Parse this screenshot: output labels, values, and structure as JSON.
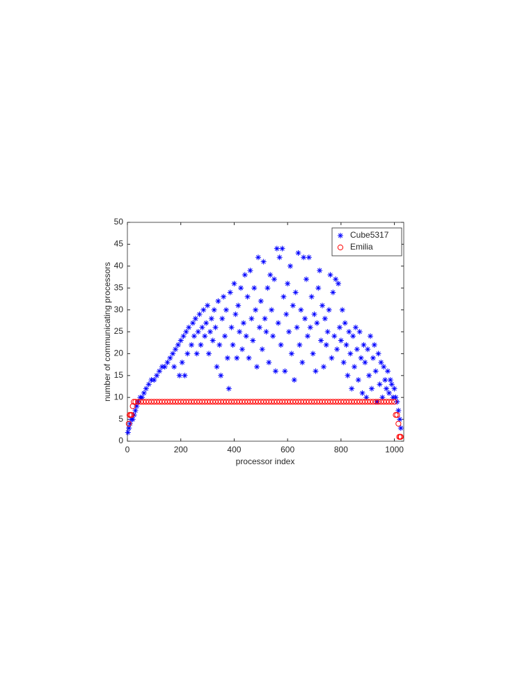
{
  "chart_data": {
    "type": "scatter",
    "xlabel": "processor index",
    "ylabel": "number of communicating processors",
    "xlim": [
      0,
      1035
    ],
    "ylim": [
      0,
      50
    ],
    "xticks": [
      0,
      200,
      400,
      600,
      800,
      1000
    ],
    "yticks": [
      0,
      5,
      10,
      15,
      20,
      25,
      30,
      35,
      40,
      45,
      50
    ],
    "legend": "upper right",
    "series": [
      {
        "name": "Cube5317",
        "color": "#0000ff",
        "marker": "star",
        "x": [
          2,
          6,
          10,
          15,
          20,
          25,
          30,
          35,
          40,
          48,
          55,
          62,
          70,
          80,
          90,
          100,
          110,
          120,
          130,
          140,
          150,
          160,
          170,
          175,
          180,
          190,
          195,
          200,
          205,
          210,
          215,
          220,
          225,
          230,
          240,
          245,
          250,
          255,
          260,
          265,
          270,
          275,
          280,
          285,
          290,
          295,
          300,
          305,
          310,
          315,
          320,
          325,
          330,
          335,
          340,
          345,
          350,
          355,
          360,
          365,
          370,
          375,
          380,
          385,
          390,
          395,
          400,
          405,
          410,
          415,
          420,
          425,
          430,
          435,
          440,
          445,
          450,
          455,
          460,
          465,
          470,
          475,
          480,
          485,
          490,
          495,
          500,
          505,
          510,
          515,
          520,
          525,
          530,
          535,
          540,
          545,
          550,
          555,
          560,
          565,
          570,
          575,
          580,
          585,
          590,
          595,
          600,
          605,
          610,
          615,
          620,
          625,
          630,
          635,
          640,
          645,
          650,
          655,
          660,
          665,
          670,
          675,
          680,
          685,
          690,
          695,
          700,
          705,
          710,
          715,
          720,
          725,
          730,
          735,
          740,
          745,
          750,
          755,
          760,
          765,
          770,
          775,
          780,
          785,
          790,
          795,
          800,
          805,
          810,
          815,
          820,
          825,
          830,
          835,
          840,
          845,
          850,
          855,
          860,
          865,
          870,
          875,
          880,
          885,
          890,
          895,
          900,
          905,
          910,
          915,
          920,
          925,
          930,
          935,
          940,
          945,
          950,
          955,
          960,
          965,
          970,
          975,
          980,
          985,
          990,
          995,
          1000,
          1005,
          1010,
          1015,
          1020,
          1024
        ],
        "values": [
          2,
          3,
          4,
          5,
          5,
          6,
          7,
          8,
          9,
          10,
          10,
          11,
          12,
          13,
          14,
          14,
          15,
          16,
          17,
          17,
          18,
          19,
          20,
          17,
          21,
          22,
          15,
          23,
          18,
          24,
          15,
          25,
          20,
          26,
          22,
          27,
          24,
          28,
          20,
          25,
          29,
          22,
          26,
          30,
          24,
          27,
          31,
          20,
          25,
          28,
          23,
          30,
          26,
          17,
          32,
          22,
          15,
          28,
          33,
          24,
          30,
          19,
          12,
          34,
          26,
          22,
          36,
          29,
          19,
          31,
          25,
          35,
          21,
          27,
          38,
          24,
          33,
          19,
          39,
          28,
          23,
          35,
          30,
          17,
          42,
          26,
          32,
          21,
          41,
          28,
          25,
          35,
          18,
          38,
          30,
          24,
          37,
          16,
          44,
          27,
          42,
          22,
          44,
          33,
          16,
          29,
          36,
          25,
          40,
          20,
          31,
          14,
          34,
          26,
          43,
          22,
          30,
          18,
          42,
          28,
          37,
          24,
          42,
          26,
          33,
          20,
          29,
          16,
          27,
          35,
          39,
          23,
          31,
          17,
          28,
          22,
          25,
          30,
          38,
          19,
          34,
          24,
          37,
          21,
          36,
          26,
          23,
          30,
          18,
          27,
          22,
          15,
          25,
          20,
          12,
          24,
          17,
          26,
          21,
          14,
          25,
          19,
          11,
          22,
          18,
          10,
          21,
          15,
          24,
          12,
          19,
          22,
          16,
          9,
          20,
          13,
          18,
          10,
          17,
          14,
          12,
          16,
          11,
          14,
          13,
          10,
          12,
          10,
          9,
          7,
          5,
          3
        ]
      },
      {
        "name": "Emilia",
        "color": "#ff0000",
        "marker": "circle",
        "x": [
          5,
          8,
          12,
          16,
          20,
          24,
          30,
          40,
          50,
          60,
          70,
          80,
          90,
          100,
          110,
          120,
          130,
          140,
          150,
          160,
          170,
          180,
          190,
          200,
          210,
          220,
          230,
          240,
          250,
          260,
          270,
          280,
          290,
          300,
          310,
          320,
          330,
          340,
          350,
          360,
          370,
          380,
          390,
          400,
          410,
          420,
          430,
          440,
          450,
          460,
          470,
          480,
          490,
          500,
          510,
          520,
          530,
          540,
          550,
          560,
          570,
          580,
          590,
          600,
          610,
          620,
          630,
          640,
          650,
          660,
          670,
          680,
          690,
          700,
          710,
          720,
          730,
          740,
          750,
          760,
          770,
          780,
          790,
          800,
          810,
          820,
          830,
          840,
          850,
          860,
          870,
          880,
          890,
          900,
          910,
          920,
          930,
          940,
          950,
          960,
          970,
          980,
          990,
          1000,
          1005,
          1010,
          1015,
          1018,
          1022,
          1024
        ],
        "values": [
          4,
          6,
          6,
          6,
          8,
          9,
          9,
          9,
          9,
          9,
          9,
          9,
          9,
          9,
          9,
          9,
          9,
          9,
          9,
          9,
          9,
          9,
          9,
          9,
          9,
          9,
          9,
          9,
          9,
          9,
          9,
          9,
          9,
          9,
          9,
          9,
          9,
          9,
          9,
          9,
          9,
          9,
          9,
          9,
          9,
          9,
          9,
          9,
          9,
          9,
          9,
          9,
          9,
          9,
          9,
          9,
          9,
          9,
          9,
          9,
          9,
          9,
          9,
          9,
          9,
          9,
          9,
          9,
          9,
          9,
          9,
          9,
          9,
          9,
          9,
          9,
          9,
          9,
          9,
          9,
          9,
          9,
          9,
          9,
          9,
          9,
          9,
          9,
          9,
          9,
          9,
          9,
          9,
          9,
          9,
          9,
          9,
          9,
          9,
          9,
          9,
          9,
          9,
          9,
          6,
          6,
          4,
          1,
          1,
          1
        ]
      }
    ]
  }
}
